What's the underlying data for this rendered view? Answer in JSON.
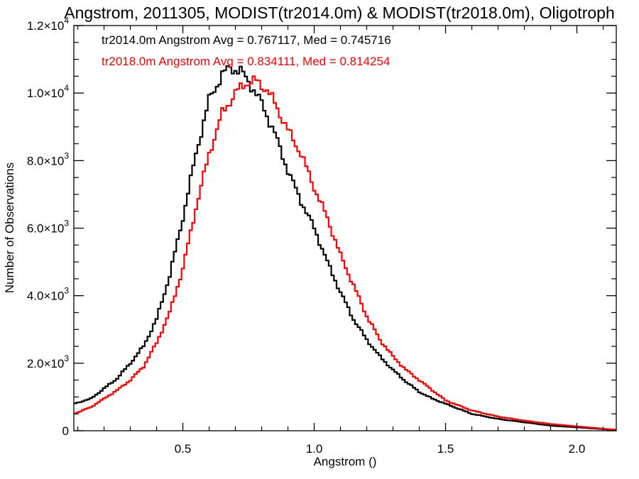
{
  "chart_data": {
    "type": "line",
    "title": "Angstrom, 2011305, MODIST(tr2014.0m) & MODIST(tr2018.0m), Oligotroph",
    "xlabel": "Angstrom ()",
    "ylabel": "Number of Observations",
    "xlim": [
      0.085,
      2.15
    ],
    "ylim": [
      0,
      12000
    ],
    "x_ticks": [
      {
        "value": 0.5,
        "label": "0.5"
      },
      {
        "value": 1.0,
        "label": "1.0"
      },
      {
        "value": 1.5,
        "label": "1.5"
      },
      {
        "value": 2.0,
        "label": "2.0"
      }
    ],
    "y_ticks": [
      {
        "value": 0,
        "mant": "0",
        "exp": ""
      },
      {
        "value": 2000,
        "mant": "2.0×10",
        "exp": "3"
      },
      {
        "value": 4000,
        "mant": "4.0×10",
        "exp": "3"
      },
      {
        "value": 6000,
        "mant": "6.0×10",
        "exp": "3"
      },
      {
        "value": 8000,
        "mant": "8.0×10",
        "exp": "3"
      },
      {
        "value": 10000,
        "mant": "1.0×10",
        "exp": "4"
      },
      {
        "value": 12000,
        "mant": "1.2×10",
        "exp": "4"
      }
    ],
    "grid": false,
    "annotations": [
      {
        "text": "tr2014.0m Angstrom Avg = 0.767117, Med = 0.745716",
        "color": "#000000"
      },
      {
        "text": "tr2018.0m Angstrom Avg = 0.834111, Med = 0.814254",
        "color": "#ff0000"
      }
    ],
    "series": [
      {
        "color": "#000000",
        "x": [
          0.085,
          0.15,
          0.2,
          0.25,
          0.3,
          0.35,
          0.4,
          0.45,
          0.5,
          0.55,
          0.6,
          0.65,
          0.68,
          0.72,
          0.75,
          0.8,
          0.85,
          0.9,
          0.95,
          1.0,
          1.05,
          1.1,
          1.15,
          1.2,
          1.25,
          1.3,
          1.35,
          1.4,
          1.45,
          1.5,
          1.55,
          1.6,
          1.7,
          1.8,
          1.9,
          2.0,
          2.1,
          2.15
        ],
        "y": [
          800,
          950,
          1250,
          1550,
          2000,
          2500,
          3300,
          4600,
          6300,
          8200,
          9800,
          10550,
          10750,
          10650,
          10350,
          9700,
          8800,
          7700,
          6800,
          6000,
          5000,
          4100,
          3300,
          2700,
          2200,
          1800,
          1450,
          1150,
          950,
          800,
          650,
          500,
          350,
          250,
          150,
          100,
          50,
          20
        ]
      },
      {
        "color": "#ff0000",
        "x": [
          0.085,
          0.15,
          0.2,
          0.25,
          0.3,
          0.35,
          0.4,
          0.45,
          0.5,
          0.55,
          0.6,
          0.65,
          0.7,
          0.74,
          0.78,
          0.82,
          0.85,
          0.9,
          0.95,
          1.0,
          1.05,
          1.1,
          1.15,
          1.2,
          1.25,
          1.3,
          1.35,
          1.4,
          1.45,
          1.5,
          1.55,
          1.6,
          1.7,
          1.8,
          1.9,
          2.0,
          2.1,
          2.15
        ],
        "y": [
          500,
          700,
          950,
          1200,
          1500,
          1900,
          2600,
          3500,
          4800,
          6600,
          8200,
          9400,
          10000,
          10300,
          10350,
          10100,
          9700,
          8900,
          8200,
          7200,
          6300,
          5200,
          4300,
          3400,
          2700,
          2200,
          1800,
          1500,
          1200,
          900,
          750,
          600,
          420,
          300,
          200,
          130,
          60,
          30
        ]
      }
    ]
  }
}
